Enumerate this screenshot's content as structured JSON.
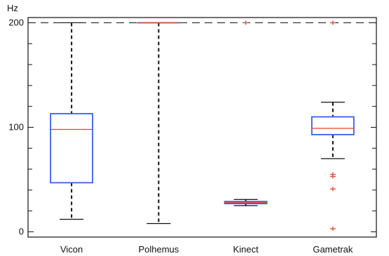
{
  "chart_data": {
    "type": "box",
    "ylabel": "Hz",
    "ylim": [
      -5,
      205
    ],
    "yticks": [
      0,
      100,
      200
    ],
    "reference_line": 200,
    "categories": [
      "Vicon",
      "Polhemus",
      "Kinect",
      "Gametrak"
    ],
    "boxes": [
      {
        "category": "Vicon",
        "whisker_low": 12,
        "q1": 47,
        "median": 98,
        "q3": 113,
        "whisker_high": 200,
        "outliers": []
      },
      {
        "category": "Polhemus",
        "whisker_low": 8,
        "q1": 200,
        "median": 200,
        "q3": 200,
        "whisker_high": 200,
        "outliers": []
      },
      {
        "category": "Kinect",
        "whisker_low": 25,
        "q1": 27,
        "median": 28,
        "q3": 29,
        "whisker_high": 31,
        "outliers": [
          200
        ]
      },
      {
        "category": "Gametrak",
        "whisker_low": 70,
        "q1": 93,
        "median": 99,
        "q3": 110,
        "whisker_high": 124,
        "outliers": [
          55,
          53,
          41,
          3,
          200
        ]
      }
    ],
    "colors": {
      "box": "#3b5ee8",
      "median": "#e8432f",
      "outlier": "#e8432f",
      "whisker": "#111111",
      "axis": "#111111"
    }
  }
}
